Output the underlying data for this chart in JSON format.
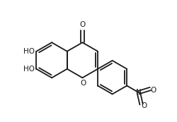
{
  "bg_color": "#ffffff",
  "line_color": "#1a1a1a",
  "line_width": 1.3,
  "font_size": 7.5,
  "xlim": [
    0,
    10
  ],
  "ylim": [
    0,
    7
  ]
}
